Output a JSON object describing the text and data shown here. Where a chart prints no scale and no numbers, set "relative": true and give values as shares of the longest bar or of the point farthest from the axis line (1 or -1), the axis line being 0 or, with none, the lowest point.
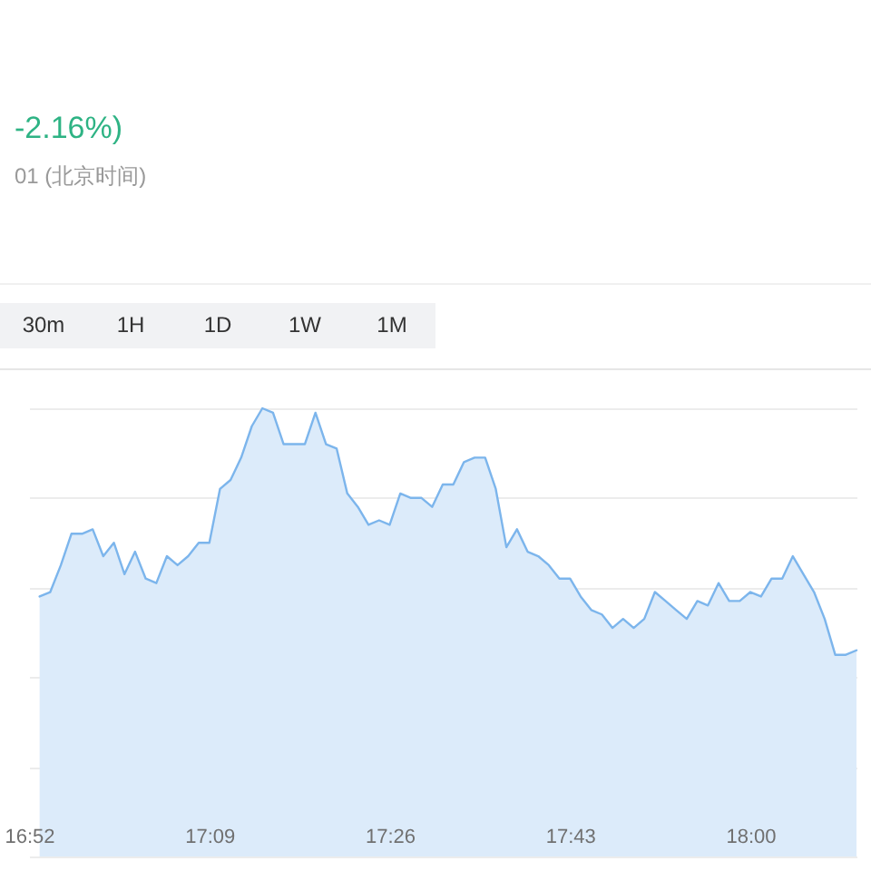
{
  "chart_data": {
    "type": "area",
    "title": "-2.16%)",
    "subtitle": "01 (北京时间)",
    "annotations": [
      "30m",
      "1H",
      "1D",
      "1W",
      "1M"
    ],
    "x": [
      16.8833,
      16.9,
      16.9167,
      16.9333,
      16.95,
      16.9667,
      16.9833,
      17,
      17.0167,
      17.0333,
      17.05,
      17.0667,
      17.0833,
      17.1,
      17.1167,
      17.1333,
      17.15,
      17.1667,
      17.1833,
      17.2,
      17.2167,
      17.2333,
      17.25,
      17.2667,
      17.2833,
      17.3,
      17.3167,
      17.3333,
      17.35,
      17.3667,
      17.3833,
      17.4,
      17.4167,
      17.4333,
      17.45,
      17.4667,
      17.4833,
      17.5,
      17.5167,
      17.5333,
      17.55,
      17.5667,
      17.5833,
      17.6,
      17.6167,
      17.6333,
      17.65,
      17.6667,
      17.6833,
      17.7,
      17.7167,
      17.7333,
      17.75,
      17.7667,
      17.7833,
      17.8,
      17.8167,
      17.8333,
      17.85,
      17.8667,
      17.8833,
      17.9,
      17.9167,
      17.9333,
      17.95,
      17.9667,
      17.9833,
      18,
      18.0167,
      18.0333,
      18.05,
      18.0667,
      18.0833,
      18.1,
      18.1167,
      18.1333,
      18.15,
      18.1667
    ],
    "series": [
      {
        "color": "#7cb5ec",
        "values": [
          0.58,
          0.59,
          0.65,
          0.72,
          0.72,
          0.73,
          0.67,
          0.7,
          0.63,
          0.68,
          0.62,
          0.61,
          0.67,
          0.65,
          0.67,
          0.7,
          0.7,
          0.82,
          0.84,
          0.89,
          0.96,
          1,
          0.99,
          0.92,
          0.92,
          0.92,
          0.99,
          0.92,
          0.91,
          0.81,
          0.78,
          0.74,
          0.75,
          0.74,
          0.81,
          0.8,
          0.8,
          0.78,
          0.83,
          0.83,
          0.88,
          0.89,
          0.89,
          0.82,
          0.69,
          0.73,
          0.68,
          0.67,
          0.65,
          0.62,
          0.62,
          0.58,
          0.55,
          0.54,
          0.51,
          0.53,
          0.51,
          0.53,
          0.59,
          0.57,
          0.55,
          0.53,
          0.57,
          0.56,
          0.61,
          0.57,
          0.57,
          0.59,
          0.58,
          0.62,
          0.62,
          0.67,
          0.63,
          0.59,
          0.53,
          0.45,
          0.45,
          0.46
        ]
      }
    ],
    "relative": true,
    "xlim": [
      16.8667,
      18.1667
    ],
    "xticks": [
      {
        "value": 16.8667,
        "label": "16:52"
      },
      {
        "value": 17.15,
        "label": "17:09"
      },
      {
        "value": 17.4333,
        "label": "17:26"
      },
      {
        "value": 17.7167,
        "label": "17:43"
      },
      {
        "value": 18,
        "label": "18:00"
      }
    ],
    "grid": "y"
  }
}
